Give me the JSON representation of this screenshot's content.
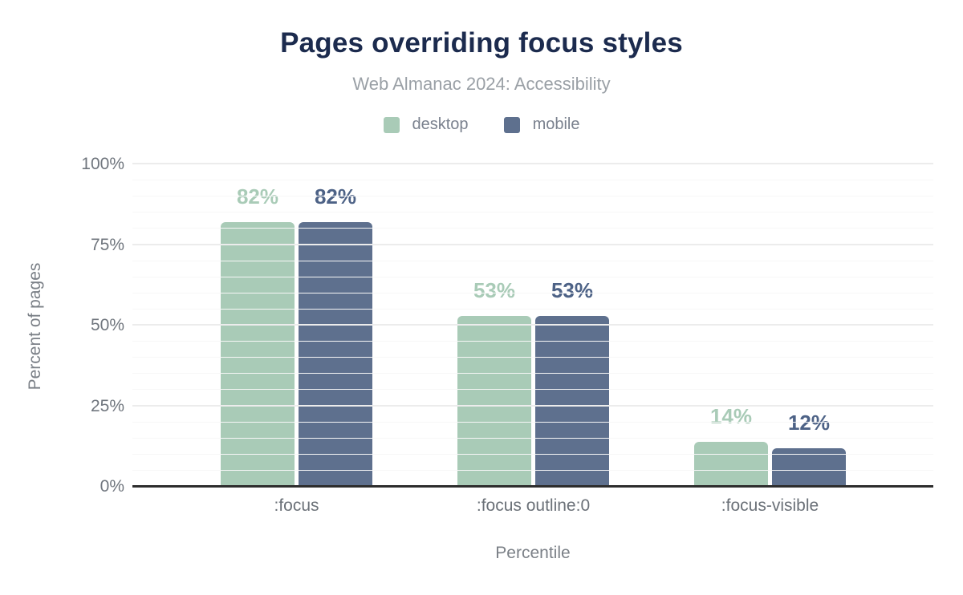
{
  "header": {
    "title": "Pages overriding focus styles",
    "subtitle": "Web Almanac 2024: Accessibility"
  },
  "legend": {
    "items": [
      {
        "label": "desktop",
        "color": "#a9cbb7"
      },
      {
        "label": "mobile",
        "color": "#5e708e"
      }
    ]
  },
  "chart_data": {
    "type": "bar",
    "title": "Pages overriding focus styles",
    "subtitle": "Web Almanac 2024: Accessibility",
    "categories": [
      ":focus",
      ":focus outline:0",
      ":focus-visible"
    ],
    "series": [
      {
        "name": "desktop",
        "color": "#a9cbb7",
        "label_color": "#a9cbb7",
        "values": [
          82,
          53,
          14
        ]
      },
      {
        "name": "mobile",
        "color": "#5e708e",
        "label_color": "#4d6286",
        "values": [
          82,
          53,
          12
        ]
      }
    ],
    "xlabel": "Percentile",
    "ylabel": "Percent of pages",
    "ylim": [
      0,
      100
    ],
    "yticks": [
      0,
      25,
      50,
      75,
      100
    ],
    "ytick_labels": [
      "0%",
      "25%",
      "50%",
      "75%",
      "100%"
    ],
    "value_suffix": "%",
    "grid": {
      "orientation": "horizontal",
      "minor_step": 5,
      "major_step": 25
    },
    "legend_position": "top",
    "background": "#ffffff"
  }
}
